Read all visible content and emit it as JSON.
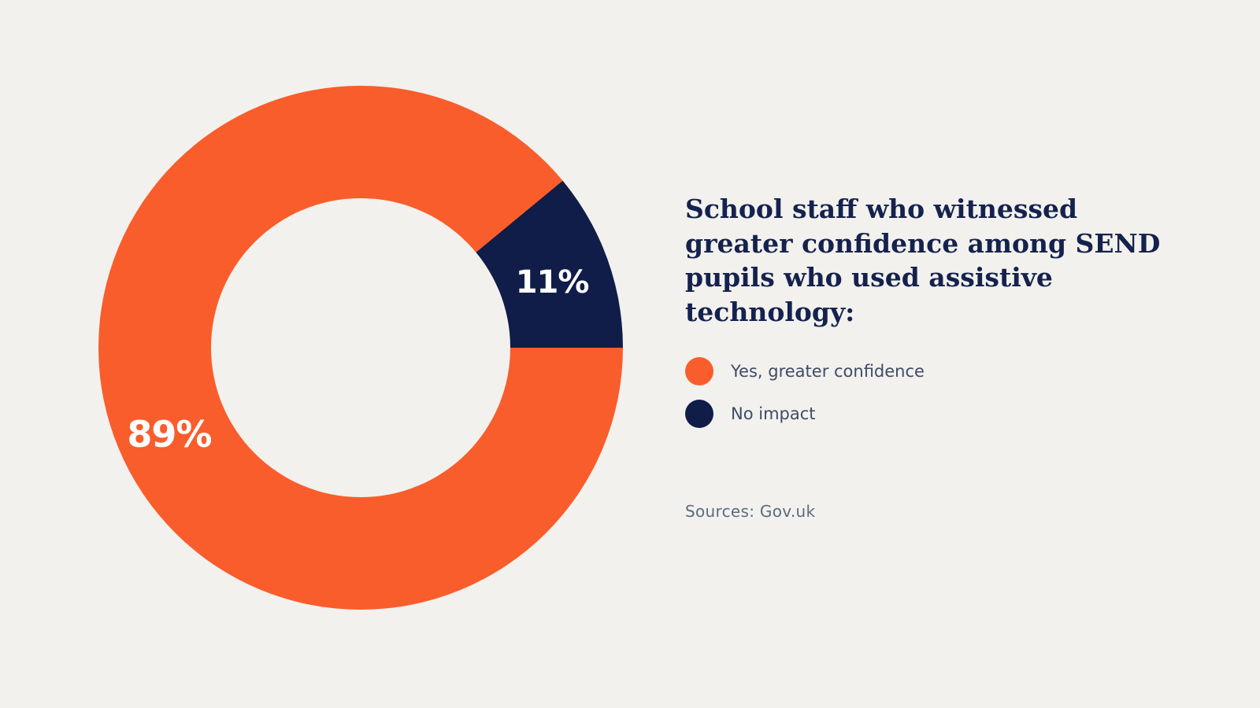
{
  "page": {
    "background": "#f2f1ed"
  },
  "chart_data": {
    "type": "pie",
    "subtype": "donut",
    "title": "School staff who witnessed greater confidence among SEND pupils who used assistive technology:",
    "categories": [
      "Yes, greater confidence",
      "No impact"
    ],
    "values": [
      89,
      11
    ],
    "unit": "%",
    "labels": [
      "89%",
      "11%"
    ],
    "colors": [
      "#f95d2c",
      "#101d49"
    ],
    "start_angle_deg": 90,
    "hole_ratio": 0.57,
    "grid": false,
    "legend_position": "right",
    "source": "Sources: Gov.uk"
  }
}
